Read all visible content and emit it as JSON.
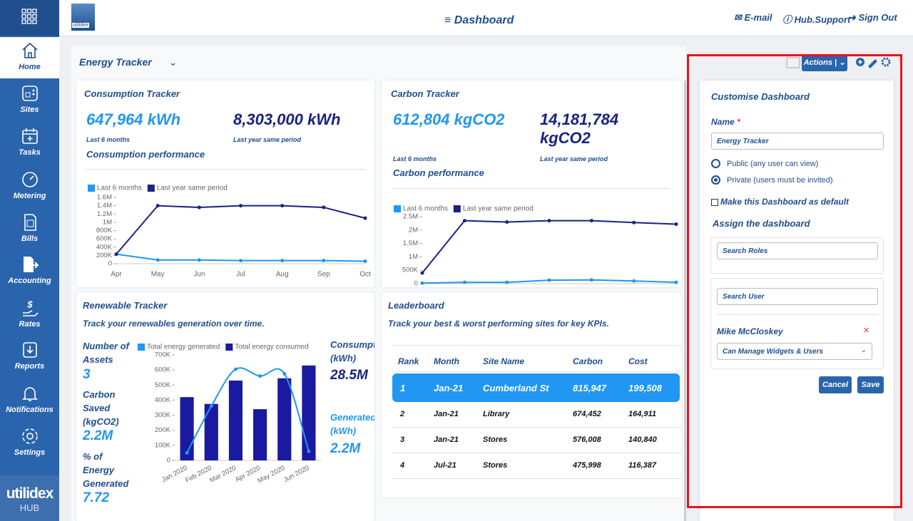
{
  "sidebar": {
    "items": [
      "Home",
      "Sites",
      "Tasks",
      "Metering",
      "Bills",
      "Accounting",
      "Rates",
      "Reports",
      "Notifications",
      "Settings"
    ],
    "logo": "utilidex",
    "logo_sub": "HUB"
  },
  "header": {
    "logo": "utilidex",
    "title": "Dashboard",
    "links": [
      "E-mail",
      "Hub.Support",
      "Sign Out"
    ]
  },
  "dashboard": {
    "name": "Energy Tracker",
    "actions": "Actions"
  },
  "consumption": {
    "title": "Consumption Tracker",
    "kpis": [
      {
        "value": "647,964 kWh",
        "label": "Last 6 months"
      },
      {
        "value": "8,303,000 kWh",
        "label": "Last year same period"
      }
    ],
    "subtitle": "Consumption performance"
  },
  "carbon": {
    "title": "Carbon Tracker",
    "kpis": [
      {
        "value": "612,804 kgCO2",
        "label": "Last 6 months"
      },
      {
        "value": "14,181,784 kgCO2",
        "label": "Last year same period"
      }
    ],
    "subtitle": "Carbon performance"
  },
  "renewable": {
    "title": "Renewable Tracker",
    "subtitle": "Track your renewables generation over time.",
    "stats": [
      {
        "label": "Number of Assets",
        "value": "3"
      },
      {
        "label": "Carbon Saved (kgCO2)",
        "value": "2.2M"
      },
      {
        "label": "% of Energy Generated",
        "value": "7.72"
      }
    ],
    "side_stats": [
      {
        "label": "Consumption (kWh)",
        "value": "28.5M"
      },
      {
        "label": "Generated (kWh)",
        "value": "2.2M"
      }
    ]
  },
  "leaderboard": {
    "title": "Leaderboard",
    "subtitle": "Track your best & worst performing sites for key KPIs.",
    "columns": [
      "Rank",
      "Month",
      "Site Name",
      "Carbon",
      "Cost"
    ],
    "rows": [
      [
        "1",
        "Jan-21",
        "Cumberland St",
        "815,947",
        "199,508"
      ],
      [
        "2",
        "Jan-21",
        "Library",
        "674,452",
        "164,911"
      ],
      [
        "3",
        "Jan-21",
        "Stores",
        "576,008",
        "140,840"
      ],
      [
        "4",
        "Jul-21",
        "Stores",
        "475,998",
        "116,387"
      ]
    ]
  },
  "customise": {
    "title": "Customise Dashboard",
    "name_label": "Name",
    "required": "*",
    "name_value": "Energy Tracker",
    "public": "Public (any user can view)",
    "private": "Private (users must be invited)",
    "default": "Make this Dashboard as default",
    "assign": "Assign the dashboard",
    "search_roles": "Search Roles",
    "search_user": "Search User",
    "user": "Mike McCloskey",
    "remove": "×",
    "permission": "Can Manage Widgets & Users",
    "cancel": "Cancel",
    "save": "Save"
  },
  "chart_data": [
    {
      "type": "line",
      "categories": [
        "Apr",
        "May",
        "Jun",
        "Jul",
        "Aug",
        "Sep",
        "Oct"
      ],
      "series": [
        {
          "name": "Last 6 months",
          "color": "#2196f3",
          "values": [
            230000,
            90000,
            90000,
            75000,
            75000,
            75000,
            60000
          ]
        },
        {
          "name": "Last year same period",
          "color": "#1a237e",
          "values": [
            230000,
            1400000,
            1360000,
            1400000,
            1400000,
            1360000,
            1100000
          ]
        }
      ],
      "ylim": [
        0,
        1600000
      ],
      "yticks": [
        0,
        {
          "value": 200000,
          "label": "200K"
        },
        {
          "value": 400000,
          "label": "400K"
        },
        {
          "value": 600000,
          "label": "600K"
        },
        {
          "value": 800000,
          "label": "800K"
        },
        {
          "value": 1000000,
          "label": "1M"
        },
        {
          "value": 1200000,
          "label": "1.2M"
        },
        {
          "value": 1400000,
          "label": "1.4M"
        },
        {
          "value": 1600000,
          "label": "1.6M"
        }
      ]
    },
    {
      "type": "line",
      "categories": [
        null,
        null,
        null,
        null,
        null,
        null,
        null
      ],
      "series": [
        {
          "name": "Last 6 months",
          "color": "#2196f3",
          "values": [
            20000,
            50000,
            50000,
            130000,
            140000,
            100000,
            50000
          ]
        },
        {
          "name": "Last year same period",
          "color": "#1a237e",
          "values": [
            400000,
            2350000,
            2300000,
            2350000,
            2350000,
            2280000,
            2220000
          ]
        }
      ],
      "ylim": [
        0,
        2500000
      ],
      "yticks": [
        0,
        {
          "value": 500000,
          "label": "500K"
        },
        {
          "value": 1000000,
          "label": "1M"
        },
        {
          "value": 1500000,
          "label": "1.5M"
        },
        {
          "value": 2000000,
          "label": "2M"
        },
        {
          "value": 2500000,
          "label": "2.5M"
        }
      ]
    },
    {
      "type": "combo",
      "categories": [
        "Jan 2020",
        "Feb 2020",
        "Mar 2020",
        "Apr 2020",
        "May 2020",
        "Jun 2020"
      ],
      "series": [
        {
          "name": "Total energy generated",
          "color": "#2196f3",
          "type": "line",
          "values": [
            50000,
            360000,
            605000,
            560000,
            575000,
            60000
          ]
        },
        {
          "name": "Total energy consumed",
          "color": "#1a1aa0",
          "type": "bar",
          "values": [
            420000,
            375000,
            530000,
            340000,
            545000,
            630000
          ]
        }
      ],
      "ylim": [
        0,
        700000
      ],
      "yticks": [
        0,
        {
          "value": 100000,
          "label": "100K"
        },
        {
          "value": 200000,
          "label": "200K"
        },
        {
          "value": 300000,
          "label": "300K"
        },
        {
          "value": 400000,
          "label": "400K"
        },
        {
          "value": 500000,
          "label": "500K"
        },
        {
          "value": 600000,
          "label": "600K"
        },
        {
          "value": 700000,
          "label": "700K"
        }
      ]
    }
  ]
}
